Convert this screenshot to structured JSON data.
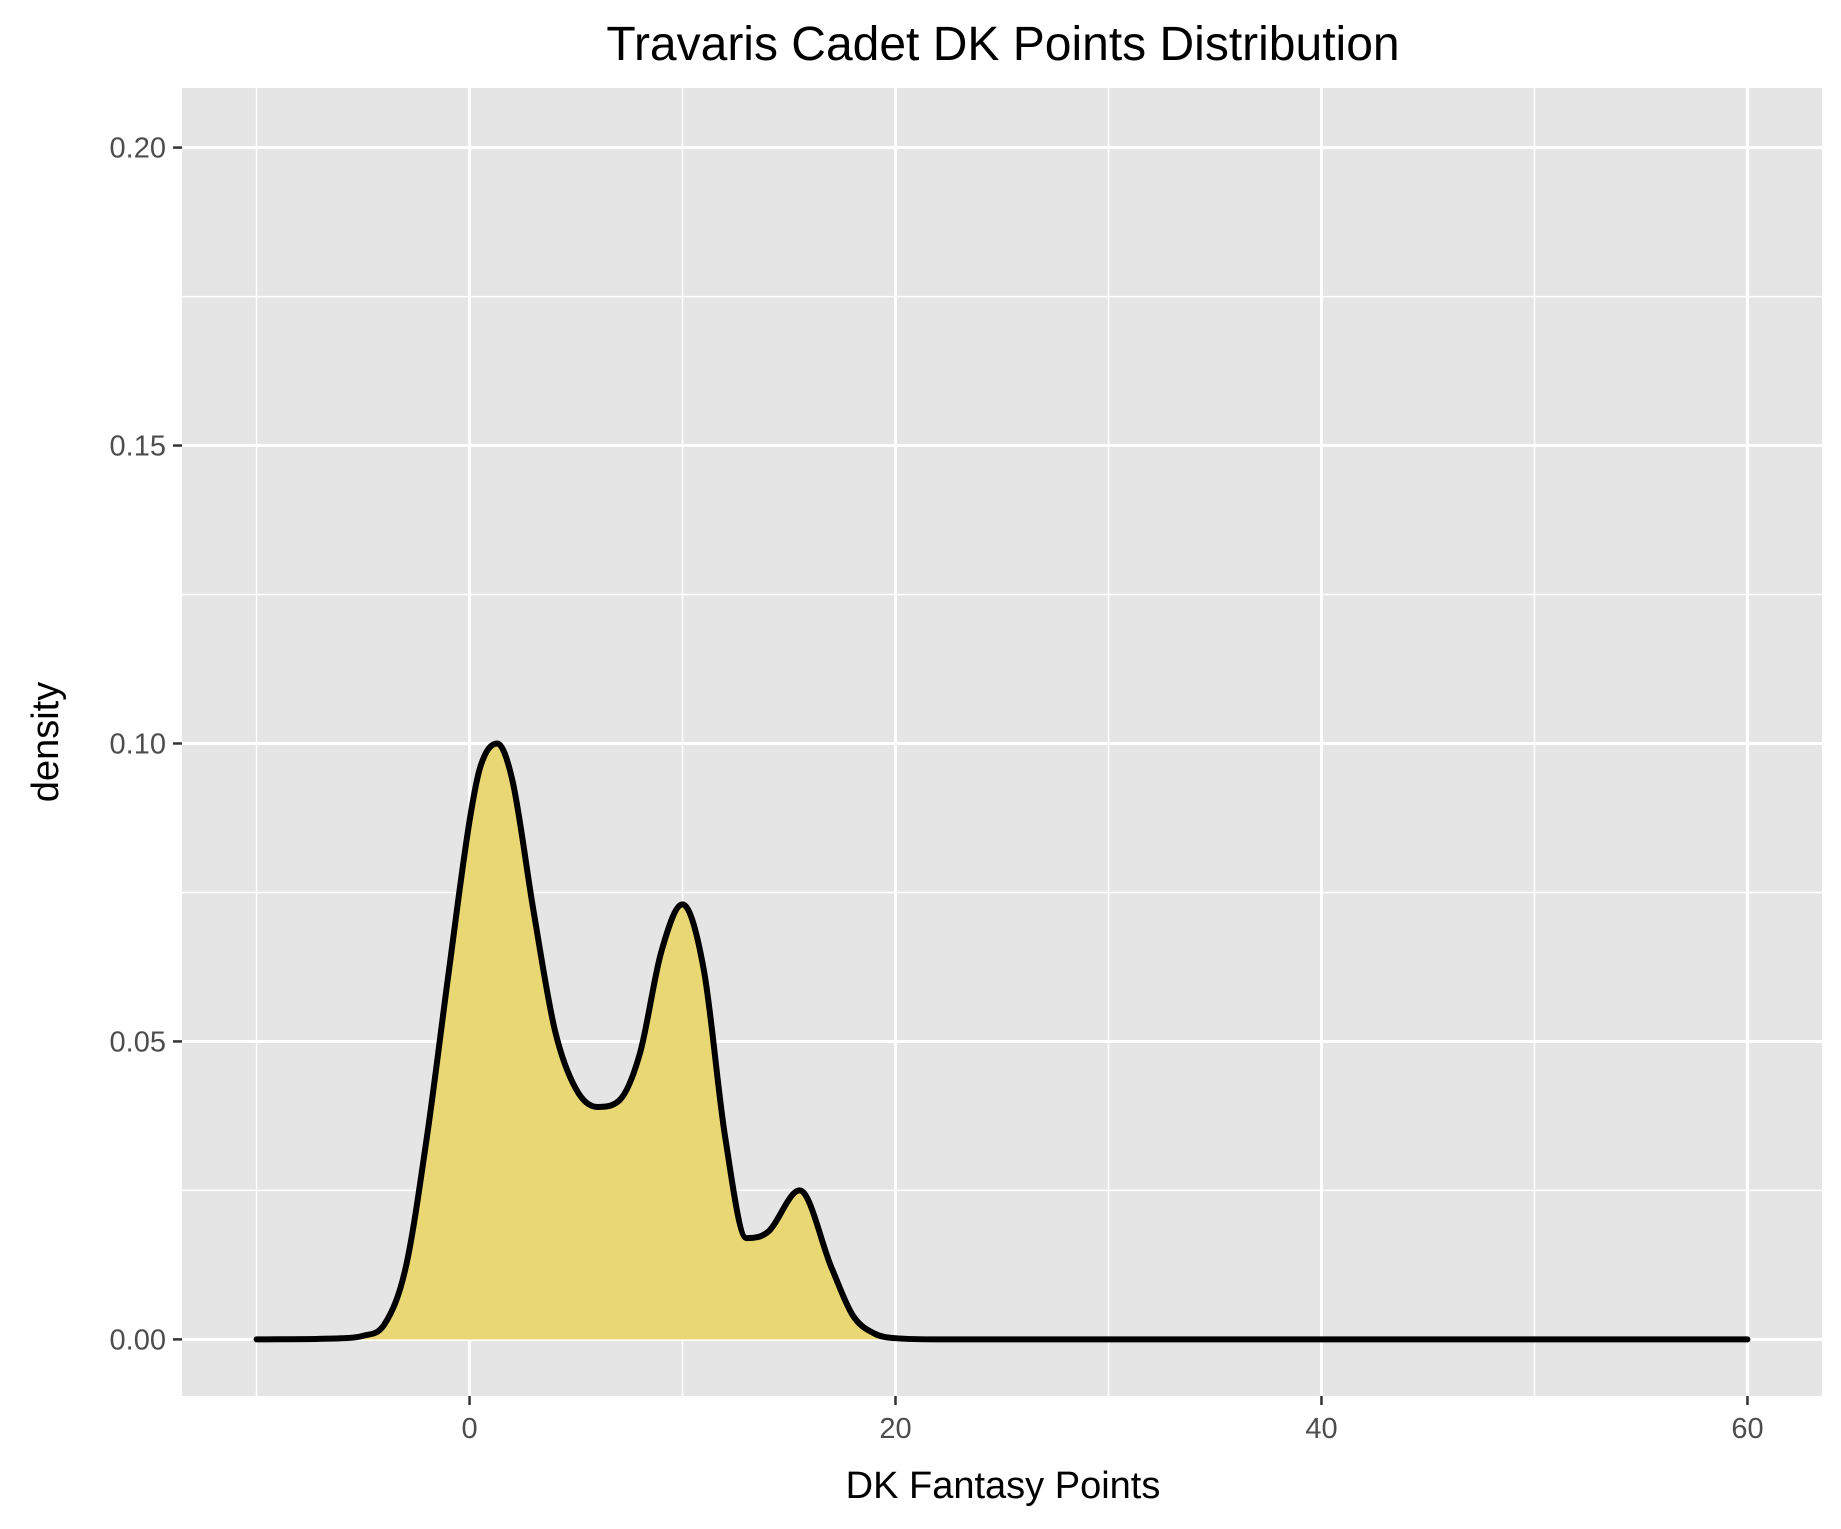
{
  "chart_data": {
    "type": "area",
    "title": "Travaris Cadet DK Points Distribution",
    "xlabel": "DK Fantasy Points",
    "ylabel": "density",
    "xlim": [
      -13.5,
      63.5
    ],
    "ylim": [
      -0.0095,
      0.21
    ],
    "x_ticks": [
      0,
      20,
      40,
      60
    ],
    "x_tick_labels": [
      "0",
      "20",
      "40",
      "60"
    ],
    "y_ticks": [
      0.0,
      0.05,
      0.1,
      0.15,
      0.2
    ],
    "y_tick_labels": [
      "0.00",
      "0.05",
      "0.10",
      "0.15",
      "0.20"
    ],
    "grid": true,
    "legend": "none",
    "series": [
      {
        "x": [
          -10,
          -6,
          -5,
          -4,
          -3,
          -2,
          -1,
          0,
          0.5,
          1.3,
          2,
          3,
          4,
          5,
          6,
          7,
          8,
          9,
          10,
          11,
          12,
          13,
          14,
          15.5,
          17,
          18,
          19,
          20,
          22,
          60
        ],
        "y": [
          0,
          0.0002,
          0.0006,
          0.0025,
          0.012,
          0.034,
          0.061,
          0.087,
          0.096,
          0.1,
          0.094,
          0.072,
          0.052,
          0.042,
          0.039,
          0.04,
          0.048,
          0.065,
          0.073,
          0.062,
          0.034,
          0.017,
          0.018,
          0.025,
          0.012,
          0.004,
          0.001,
          0.0002,
          0,
          0
        ]
      }
    ],
    "colors": {
      "panel_background": "#e5e5e5",
      "grid_line": "#ffffff",
      "fill": "#e8d773",
      "line": "#000000",
      "tick_label": "#4d4d4d"
    }
  }
}
